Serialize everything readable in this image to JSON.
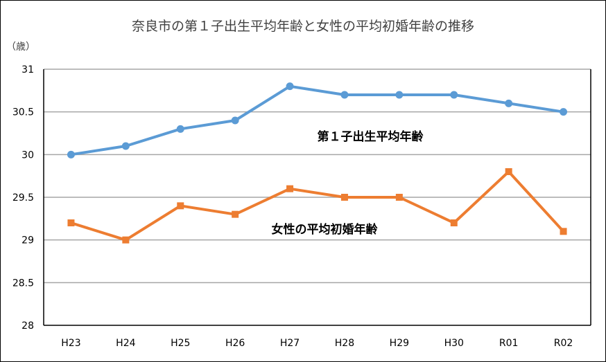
{
  "chart_data": {
    "type": "line",
    "title": "奈良市の第１子出生平均年齢と女性の平均初婚年齢の推移",
    "ylabel": "（歳）",
    "xlabel": "",
    "categories": [
      "H23",
      "H24",
      "H25",
      "H26",
      "H27",
      "H28",
      "H29",
      "H30",
      "R01",
      "R02"
    ],
    "ylim": [
      28,
      31
    ],
    "yticks": [
      "28",
      "28.5",
      "29",
      "29.5",
      "30",
      "30.5",
      "31"
    ],
    "grid": true,
    "legend": "inline-labels",
    "series": [
      {
        "name": "第１子出生平均年齢",
        "color": "#5b9bd5",
        "marker": "circle",
        "values": [
          30.0,
          30.1,
          30.3,
          30.4,
          30.8,
          30.7,
          30.7,
          30.7,
          30.6,
          30.5
        ]
      },
      {
        "name": "女性の平均初婚年齢",
        "color": "#ed7d31",
        "marker": "square",
        "values": [
          29.2,
          29.0,
          29.4,
          29.3,
          29.6,
          29.5,
          29.5,
          29.2,
          29.8,
          29.1
        ]
      }
    ]
  }
}
